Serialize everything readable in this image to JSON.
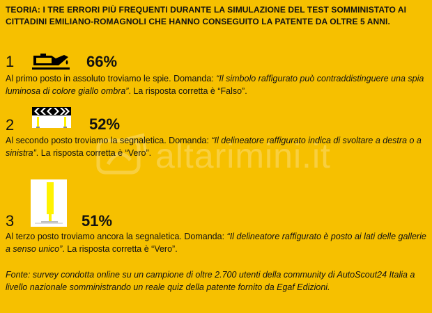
{
  "header": {
    "title": "TEORIA: I TRE ERRORI PIÙ FREQUENTI DURANTE LA SIMULAZIONE DEL TEST SOMMINISTATO AI CITTADINI EMILIANO-ROMAGNOLI CHE HANNO CONSEGUITO LA PATENTE DA OLTRE 5 ANNI."
  },
  "items": [
    {
      "rank": "1",
      "percent": "66%",
      "icon": "oil-warning-lamp-icon",
      "text_before": "Al primo posto in assoluto troviamo le spie. Domanda: ",
      "question": "“Il simbolo raffigurato può contraddistinguere una spia luminosa di colore giallo ombra”",
      "text_after": ". La risposta corretta è “Falso”."
    },
    {
      "rank": "2",
      "percent": "52%",
      "icon": "chevron-delineator-icon",
      "text_before": "Al secondo posto troviamo la segnaletica. Domanda: ",
      "question": "“Il delineatore raffigurato indica di svoltare a destra o a sinistra”",
      "text_after": ". La risposta corretta è “Vero”."
    },
    {
      "rank": "3",
      "percent": "51%",
      "icon": "tunnel-delineator-icon",
      "text_before": "Al terzo posto troviamo ancora la segnaletica. Domanda: ",
      "question": "“Il delineatore raffigurato è posto ai lati delle gallerie a senso unico”",
      "text_after": ". La risposta corretta è “Vero”."
    }
  ],
  "source": "Fonte: survey condotta online su un campione di oltre 2.700 utenti della community di AutoScout24 Italia a livello nazionale somministrando un reale quiz della patente fornito da Egaf Edizioni.",
  "watermark": {
    "text": "altarimini.it",
    "icon": "watermark-logo-icon"
  },
  "colors": {
    "background": "#f6c000",
    "text": "#111111",
    "stripe": "#fff200"
  }
}
